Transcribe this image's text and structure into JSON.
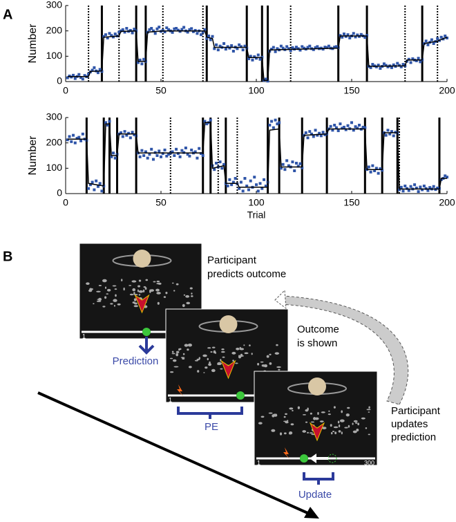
{
  "panel_labels": [
    "A",
    "B"
  ],
  "chart_data": [
    {
      "type": "scatter",
      "ylabel": "Number",
      "xlim": [
        0,
        200
      ],
      "xticks": [
        0,
        50,
        100,
        150,
        200
      ],
      "ylim": [
        0,
        300
      ],
      "yticks": [
        0,
        100,
        200,
        300
      ],
      "series": [
        {
          "type": "scatter",
          "marker": "square",
          "color": "#2f55a8",
          "x": [
            1,
            2,
            3,
            4,
            5,
            6,
            7,
            8,
            9,
            10,
            11,
            12,
            13,
            14,
            15,
            16,
            17,
            18,
            19,
            20,
            21,
            22,
            23,
            24,
            25,
            26,
            27,
            28,
            29,
            30,
            31,
            32,
            33,
            34,
            35,
            36,
            37,
            38,
            39,
            40,
            41,
            42,
            43,
            44,
            45,
            46,
            47,
            48,
            49,
            50,
            51,
            52,
            53,
            54,
            55,
            56,
            57,
            58,
            59,
            60,
            61,
            62,
            63,
            64,
            65,
            66,
            67,
            68,
            69,
            70,
            71,
            72,
            73,
            74,
            75,
            76,
            77,
            78,
            79,
            80,
            81,
            82,
            83,
            84,
            85,
            86,
            87,
            88,
            89,
            90,
            91,
            92,
            93,
            94,
            95,
            96,
            97,
            98,
            99,
            100,
            101,
            102,
            103,
            104,
            105,
            106,
            107,
            108,
            109,
            110,
            111,
            112,
            113,
            114,
            115,
            116,
            117,
            118,
            119,
            120,
            121,
            122,
            123,
            124,
            125,
            126,
            127,
            128,
            129,
            130,
            131,
            132,
            133,
            134,
            135,
            136,
            137,
            138,
            139,
            140,
            141,
            142,
            143,
            144,
            145,
            146,
            147,
            148,
            149,
            150,
            151,
            152,
            153,
            154,
            155,
            156,
            157,
            158,
            159,
            160,
            161,
            162,
            163,
            164,
            165,
            166,
            167,
            168,
            169,
            170,
            171,
            172,
            173,
            174,
            175,
            176,
            177,
            178,
            179,
            180,
            181,
            182,
            183,
            184,
            185,
            186,
            187,
            188,
            189,
            190,
            191,
            192,
            193,
            194,
            195,
            196,
            197,
            198,
            199,
            200
          ],
          "values": [
            15,
            22,
            18,
            25,
            12,
            20,
            28,
            16,
            10,
            24,
            19,
            30,
            38,
            45,
            55,
            42,
            35,
            48,
            40,
            178,
            185,
            172,
            190,
            182,
            176,
            188,
            180,
            195,
            200,
            205,
            195,
            210,
            198,
            202,
            192,
            207,
            200,
            75,
            85,
            70,
            88,
            80,
            195,
            205,
            210,
            200,
            190,
            208,
            215,
            198,
            202,
            196,
            212,
            205,
            200,
            194,
            208,
            210,
            203,
            198,
            206,
            214,
            200,
            195,
            205,
            209,
            197,
            202,
            190,
            200,
            185,
            195,
            205,
            170,
            180,
            165,
            178,
            130,
            145,
            125,
            140,
            135,
            150,
            128,
            138,
            132,
            142,
            120,
            136,
            130,
            145,
            138,
            125,
            140,
            132,
            90,
            100,
            85,
            98,
            92,
            105,
            88,
            96,
            5,
            10,
            2,
            120,
            128,
            135,
            118,
            130,
            125,
            140,
            132,
            126,
            138,
            130,
            122,
            134,
            128,
            136,
            130,
            124,
            138,
            132,
            128,
            135,
            140,
            130,
            126,
            134,
            138,
            130,
            132,
            128,
            136,
            134,
            140,
            132,
            130,
            136,
            138,
            134,
            182,
            175,
            188,
            178,
            185,
            172,
            180,
            190,
            176,
            184,
            178,
            186,
            180,
            174,
            182,
            60,
            55,
            68,
            62,
            58,
            65,
            52,
            60,
            70,
            64,
            58,
            62,
            55,
            66,
            60,
            72,
            64,
            58,
            68,
            62,
            80,
            88,
            75,
            90,
            85,
            82,
            92,
            78,
            86,
            150,
            160,
            145,
            155,
            165,
            150,
            158,
            170,
            162,
            175,
            168,
            180,
            172
          ]
        },
        {
          "type": "line",
          "color": "#000000",
          "x": [
            1,
            12,
            13,
            19,
            20,
            28,
            29,
            37,
            38,
            42,
            43,
            51,
            73,
            74,
            77,
            78,
            95,
            96,
            103,
            104,
            106,
            107,
            143,
            144,
            158,
            159,
            178,
            179,
            187,
            188,
            195,
            200
          ],
          "values": [
            20,
            20,
            40,
            42,
            175,
            180,
            198,
            200,
            80,
            80,
            195,
            200,
            200,
            175,
            170,
            135,
            135,
            95,
            95,
            5,
            5,
            125,
            132,
            180,
            180,
            60,
            62,
            85,
            85,
            150,
            160,
            175
          ]
        }
      ],
      "solid_lines": [
        19,
        37,
        42,
        74,
        95,
        103,
        106,
        143,
        158,
        187
      ],
      "dotted_lines": [
        12,
        28,
        51,
        72,
        118,
        178,
        195
      ]
    },
    {
      "type": "scatter",
      "ylabel": "Number",
      "xlabel": "Trial",
      "xlim": [
        0,
        200
      ],
      "xticks": [
        0,
        50,
        100,
        150,
        200
      ],
      "ylim": [
        0,
        300
      ],
      "yticks": [
        0,
        100,
        200,
        300
      ],
      "series": [
        {
          "type": "scatter",
          "marker": "square",
          "color": "#2f55a8",
          "x": [
            1,
            2,
            3,
            4,
            5,
            6,
            7,
            8,
            9,
            10,
            11,
            12,
            13,
            14,
            15,
            16,
            17,
            18,
            19,
            20,
            21,
            22,
            23,
            24,
            25,
            26,
            27,
            28,
            29,
            30,
            31,
            32,
            33,
            34,
            35,
            36,
            37,
            38,
            39,
            40,
            41,
            42,
            43,
            44,
            45,
            46,
            47,
            48,
            49,
            50,
            51,
            52,
            53,
            54,
            55,
            56,
            57,
            58,
            59,
            60,
            61,
            62,
            63,
            64,
            65,
            66,
            67,
            68,
            69,
            70,
            71,
            72,
            73,
            74,
            75,
            76,
            77,
            78,
            79,
            80,
            81,
            82,
            83,
            84,
            85,
            86,
            87,
            88,
            89,
            90,
            91,
            92,
            93,
            94,
            95,
            96,
            97,
            98,
            99,
            100,
            101,
            102,
            103,
            104,
            105,
            106,
            107,
            108,
            109,
            110,
            111,
            112,
            113,
            114,
            115,
            116,
            117,
            118,
            119,
            120,
            121,
            122,
            123,
            124,
            125,
            126,
            127,
            128,
            129,
            130,
            131,
            132,
            133,
            134,
            135,
            136,
            137,
            138,
            139,
            140,
            141,
            142,
            143,
            144,
            145,
            146,
            147,
            148,
            149,
            150,
            151,
            152,
            153,
            154,
            155,
            156,
            157,
            158,
            159,
            160,
            161,
            162,
            163,
            164,
            165,
            166,
            167,
            168,
            169,
            170,
            171,
            172,
            173,
            174,
            175,
            176,
            177,
            178,
            179,
            180,
            181,
            182,
            183,
            184,
            185,
            186,
            187,
            188,
            189,
            190,
            191,
            192,
            193,
            194,
            195,
            196,
            197,
            198,
            199,
            200
          ],
          "values": [
            212,
            225,
            205,
            230,
            200,
            218,
            222,
            208,
            235,
            215,
            210,
            20,
            35,
            45,
            15,
            50,
            28,
            40,
            10,
            30,
            280,
            270,
            285,
            145,
            160,
            140,
            155,
            235,
            240,
            225,
            245,
            230,
            238,
            220,
            242,
            232,
            228,
            160,
            145,
            170,
            150,
            165,
            140,
            155,
            175,
            135,
            162,
            150,
            168,
            145,
            158,
            172,
            148,
            155,
            160,
            165,
            150,
            175,
            158,
            145,
            170,
            162,
            180,
            155,
            148,
            172,
            160,
            165,
            140,
            178,
            158,
            150,
            285,
            275,
            280,
            290,
            110,
            95,
            120,
            105,
            125,
            100,
            115,
            40,
            30,
            55,
            35,
            45,
            60,
            38,
            20,
            45,
            10,
            60,
            30,
            15,
            50,
            25,
            65,
            35,
            10,
            40,
            20,
            55,
            30,
            45,
            270,
            285,
            260,
            290,
            275,
            280,
            100,
            115,
            95,
            130,
            110,
            105,
            125,
            90,
            120,
            108,
            118,
            102,
            230,
            240,
            220,
            245,
            235,
            225,
            250,
            230,
            238,
            228,
            242,
            232,
            236,
            255,
            265,
            250,
            270,
            260,
            248,
            275,
            258,
            262,
            252,
            268,
            256,
            280,
            250,
            264,
            258,
            270,
            254,
            262,
            260,
            95,
            105,
            85,
            110,
            90,
            100,
            80,
            98,
            92,
            240,
            230,
            250,
            235,
            245,
            228,
            242,
            238,
            15,
            25,
            10,
            30,
            20,
            12,
            28,
            18,
            35,
            22,
            8,
            26,
            15,
            30,
            20,
            12,
            24,
            18,
            28,
            16,
            22,
            20,
            55,
            60,
            70,
            65
          ]
        },
        {
          "type": "line",
          "color": "#000000",
          "x": [
            1,
            11,
            12,
            20,
            21,
            23,
            24,
            27,
            28,
            37,
            38,
            72,
            73,
            76,
            77,
            83,
            84,
            90,
            91,
            106,
            107,
            112,
            113,
            124,
            125,
            137,
            138,
            157,
            158,
            166,
            167,
            174,
            175,
            196,
            197,
            200
          ],
          "values": [
            215,
            215,
            40,
            30,
            275,
            275,
            150,
            150,
            235,
            235,
            160,
            160,
            280,
            280,
            100,
            110,
            40,
            40,
            25,
            25,
            250,
            255,
            105,
            105,
            230,
            235,
            255,
            255,
            95,
            95,
            240,
            240,
            18,
            18,
            60,
            60
          ]
        }
      ],
      "solid_lines": [
        11,
        20,
        23,
        27,
        37,
        72,
        76,
        84,
        106,
        112,
        124,
        137,
        157,
        166,
        174,
        196
      ],
      "dotted_lines": [
        55,
        80,
        90,
        175
      ]
    }
  ],
  "panel_b": {
    "screens": [
      {
        "caption": [
          "Participant",
          "predicts outcome"
        ],
        "scale_min": "1"
      },
      {
        "caption": [
          "Outcome",
          "is shown"
        ],
        "scale_min": "1"
      },
      {
        "caption": [
          "Participant",
          "updates",
          "prediction"
        ],
        "scale_min": "1",
        "scale_max": "300"
      }
    ],
    "brackets": [
      "Prediction",
      "PE",
      "Update"
    ]
  }
}
